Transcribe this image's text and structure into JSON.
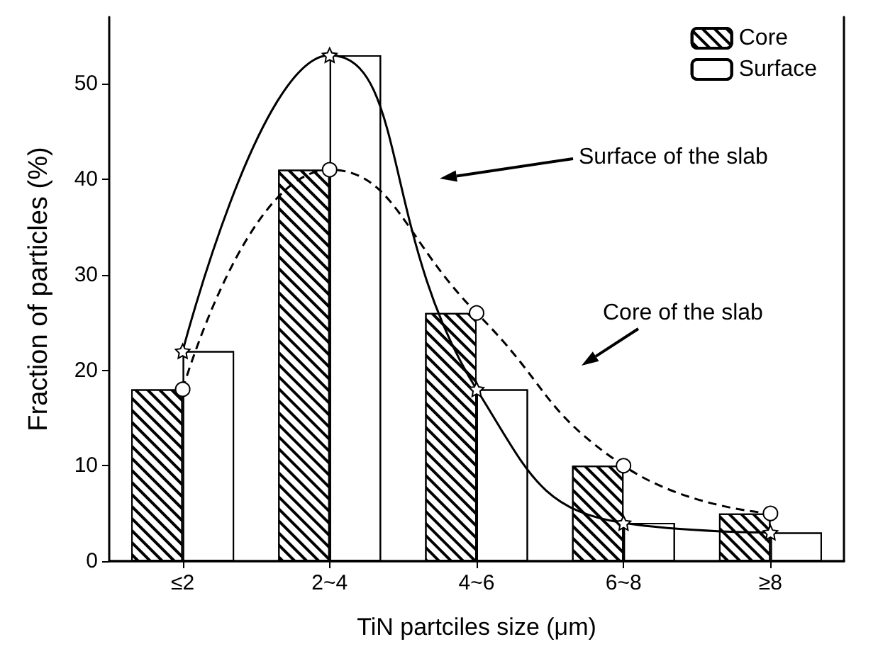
{
  "chart_data": {
    "type": "bar",
    "xlabel": "TiN partciles size (μm)",
    "ylabel": "Fraction of particles (%)",
    "categories": [
      "≤2",
      "2~4",
      "4~6",
      "6~8",
      "≥8"
    ],
    "series": [
      {
        "name": "Core",
        "color": "#ffffff",
        "values": [
          18,
          41,
          26,
          10,
          5
        ]
      },
      {
        "name": "Surface",
        "color": "#ffffff",
        "values": [
          22,
          53,
          18,
          4,
          3
        ]
      },
      {
        "type": "line",
        "color": "#000000",
        "marker": "star",
        "line_style": "solid",
        "values": [
          22,
          53,
          18,
          4,
          3
        ]
      },
      {
        "type": "line",
        "color": "#000000",
        "marker": "circle",
        "line_style": "dashed",
        "values": [
          18,
          41,
          26,
          10,
          5
        ]
      }
    ],
    "ylim": [
      0,
      57
    ],
    "yticks": [
      0,
      10,
      20,
      30,
      40,
      50
    ],
    "grid": false,
    "legend": "top right",
    "annotations": [
      "Surface of the slab",
      "Core of the slab"
    ]
  }
}
